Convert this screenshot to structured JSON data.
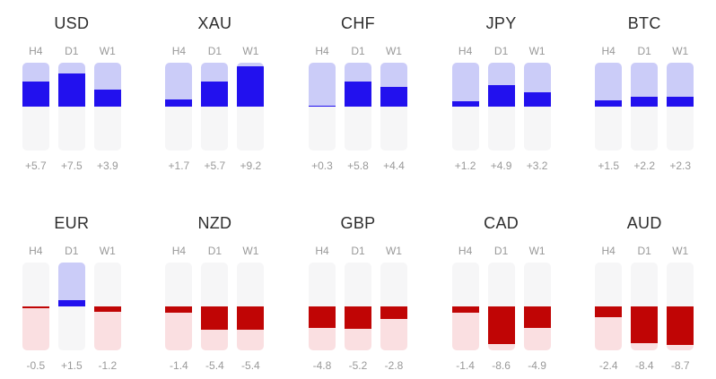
{
  "page": {
    "background": "#ffffff"
  },
  "colors": {
    "positive_fill": "#2211ee",
    "positive_track": "#cbccf8",
    "negative_fill": "#c00505",
    "negative_track": "#fadfe1",
    "neutral_track": "#f6f6f7",
    "title_text": "#2e2e2e",
    "muted_text": "#999999"
  },
  "chart_data": {
    "type": "bar",
    "subtype": "currency-strength-meter",
    "orientation": "vertical",
    "value_range": [
      -10,
      10
    ],
    "zero_line": "middle",
    "timeframes": [
      "H4",
      "D1",
      "W1"
    ],
    "rows": [
      {
        "panels": [
          {
            "symbol": "USD",
            "values": [
              5.7,
              7.5,
              3.9
            ],
            "display": [
              "+5.7",
              "+7.5",
              "+3.9"
            ]
          },
          {
            "symbol": "XAU",
            "values": [
              1.7,
              5.7,
              9.2
            ],
            "display": [
              "+1.7",
              "+5.7",
              "+9.2"
            ]
          },
          {
            "symbol": "CHF",
            "values": [
              0.3,
              5.8,
              4.4
            ],
            "display": [
              "+0.3",
              "+5.8",
              "+4.4"
            ]
          },
          {
            "symbol": "JPY",
            "values": [
              1.2,
              4.9,
              3.2
            ],
            "display": [
              "+1.2",
              "+4.9",
              "+3.2"
            ]
          },
          {
            "symbol": "BTC",
            "values": [
              1.5,
              2.2,
              2.3
            ],
            "display": [
              "+1.5",
              "+2.2",
              "+2.3"
            ]
          }
        ]
      },
      {
        "panels": [
          {
            "symbol": "EUR",
            "values": [
              -0.5,
              1.5,
              -1.2
            ],
            "display": [
              "-0.5",
              "+1.5",
              "-1.2"
            ]
          },
          {
            "symbol": "NZD",
            "values": [
              -1.4,
              -5.4,
              -5.4
            ],
            "display": [
              "-1.4",
              "-5.4",
              "-5.4"
            ]
          },
          {
            "symbol": "GBP",
            "values": [
              -4.8,
              -5.2,
              -2.8
            ],
            "display": [
              "-4.8",
              "-5.2",
              "-2.8"
            ]
          },
          {
            "symbol": "CAD",
            "values": [
              -1.4,
              -8.6,
              -4.9
            ],
            "display": [
              "-1.4",
              "-8.6",
              "-4.9"
            ]
          },
          {
            "symbol": "AUD",
            "values": [
              -2.4,
              -8.4,
              -8.7
            ],
            "display": [
              "-2.4",
              "-8.4",
              "-8.7"
            ]
          }
        ]
      }
    ]
  }
}
